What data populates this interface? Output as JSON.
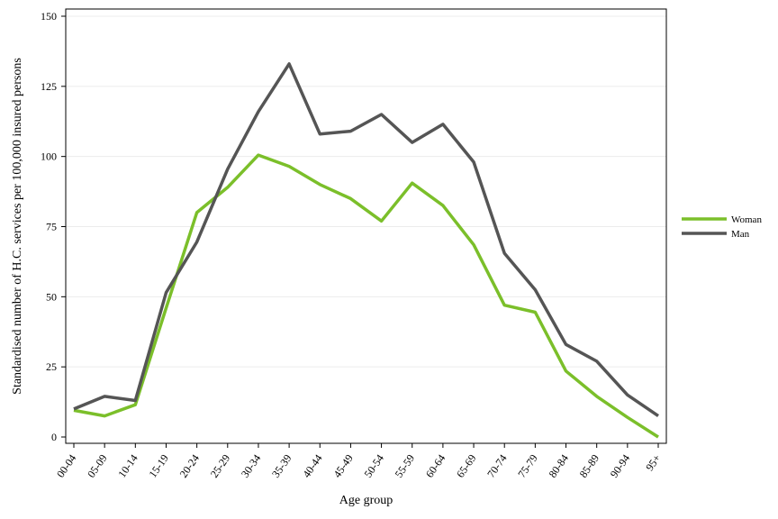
{
  "chart_data": {
    "type": "line",
    "title": "",
    "xlabel": "Age group",
    "ylabel": "Standardised number of H.C. services per 100,000 insured persons",
    "categories": [
      "00-04",
      "05-09",
      "10-14",
      "15-19",
      "20-24",
      "25-29",
      "30-34",
      "35-39",
      "40-44",
      "45-49",
      "50-54",
      "55-59",
      "60-64",
      "65-69",
      "70-74",
      "75-79",
      "80-84",
      "85-89",
      "90-94",
      "95+"
    ],
    "ylim": [
      0,
      150
    ],
    "yticks": [
      0,
      25,
      50,
      75,
      100,
      125,
      150
    ],
    "grid": true,
    "legend_position": "right",
    "series": [
      {
        "name": "Woman",
        "color": "#7bbf2a",
        "values": [
          9.5,
          7.5,
          11.5,
          46,
          80,
          89,
          100.5,
          96.5,
          90,
          85,
          77,
          90.5,
          82.5,
          68.5,
          47,
          44.5,
          23.5,
          14.5,
          7,
          0
        ]
      },
      {
        "name": "Man",
        "color": "#555555",
        "values": [
          10,
          14.5,
          13,
          51.5,
          69.5,
          95.5,
          116,
          133,
          108,
          109,
          115,
          105,
          111.5,
          98,
          65.5,
          52.5,
          33,
          27,
          15,
          7.5
        ]
      }
    ]
  }
}
